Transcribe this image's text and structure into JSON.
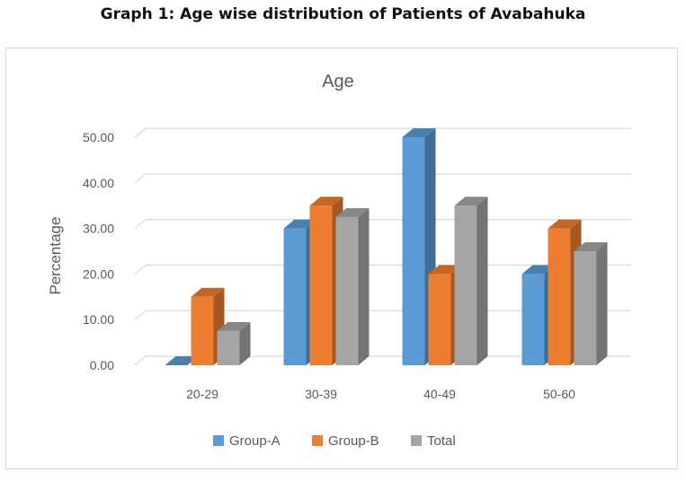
{
  "page": {
    "heading": "Graph 1: Age wise distribution of Patients of Avabahuka"
  },
  "chart_data": {
    "type": "bar",
    "title": "Age",
    "xlabel": "",
    "ylabel": "Percentage",
    "categories": [
      "20-29",
      "30-39",
      "40-49",
      "50-60"
    ],
    "ylim": [
      0,
      50
    ],
    "yticks": [
      "0.00",
      "10.00",
      "20.00",
      "30.00",
      "40.00",
      "50.00"
    ],
    "grid": true,
    "legend_position": "bottom",
    "series": [
      {
        "name": "Group-A",
        "values": [
          0,
          30,
          50,
          20
        ],
        "color": "#5b9bd5"
      },
      {
        "name": "Group-B",
        "values": [
          15,
          35,
          20,
          30
        ],
        "color": "#ed7d31"
      },
      {
        "name": "Total",
        "values": [
          7.5,
          32.5,
          35,
          25
        ],
        "color": "#a5a5a5"
      }
    ]
  }
}
